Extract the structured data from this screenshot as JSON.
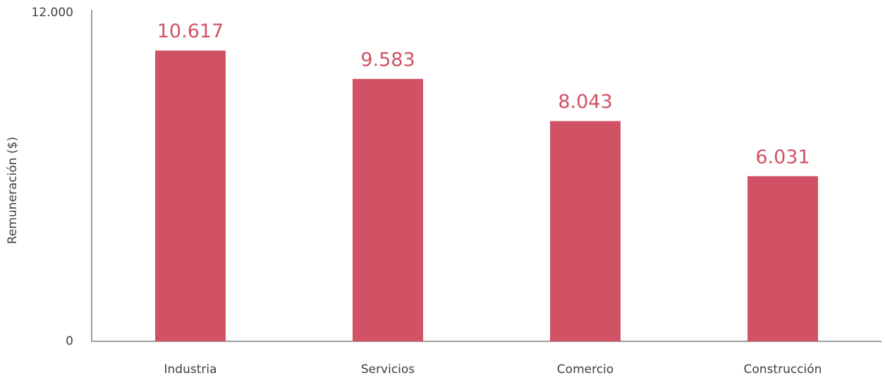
{
  "chart_data": {
    "type": "bar",
    "y_label": "Remuneración ($)",
    "categories": [
      "Industria",
      "Servicios",
      "Comercio",
      "Construcción"
    ],
    "values": [
      10617,
      9583,
      8043,
      6031
    ],
    "value_labels": [
      "10.617",
      "9.583",
      "8.043",
      "6.031"
    ],
    "color": "#d05264",
    "ylim": [
      0,
      12000
    ],
    "yticks": [
      0,
      {
        "value": 12000,
        "label": "12.000"
      }
    ],
    "grid": false
  }
}
